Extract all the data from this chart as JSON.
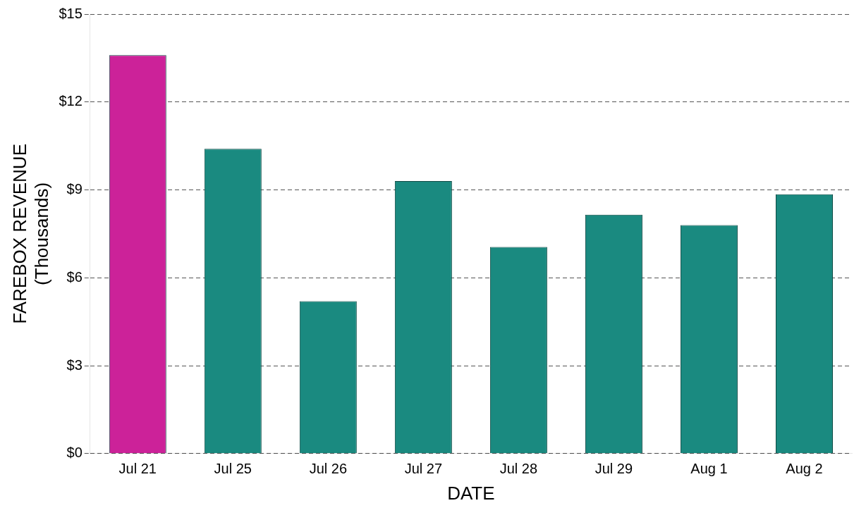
{
  "chart_data": {
    "type": "bar",
    "xlabel": "DATE",
    "ylabel": "FAREBOX REVENUE\n(Thousands)",
    "categories": [
      "Jul 21",
      "Jul 25",
      "Jul 26",
      "Jul 27",
      "Jul 28",
      "Jul 29",
      "Aug 1",
      "Aug 2"
    ],
    "values": [
      13.6,
      10.4,
      5.2,
      9.3,
      7.05,
      8.15,
      7.8,
      8.85
    ],
    "colors": [
      "#cc2299",
      "#1a8a80",
      "#1a8a80",
      "#1a8a80",
      "#1a8a80",
      "#1a8a80",
      "#1a8a80",
      "#1a8a80"
    ],
    "ylim": [
      0,
      15
    ],
    "yticks": [
      {
        "value": 0,
        "label": "$0"
      },
      {
        "value": 3,
        "label": "$3"
      },
      {
        "value": 6,
        "label": "$6"
      },
      {
        "value": 9,
        "label": "$9"
      },
      {
        "value": 12,
        "label": "$12"
      },
      {
        "value": 15,
        "label": "$15"
      }
    ],
    "grid": "y"
  }
}
